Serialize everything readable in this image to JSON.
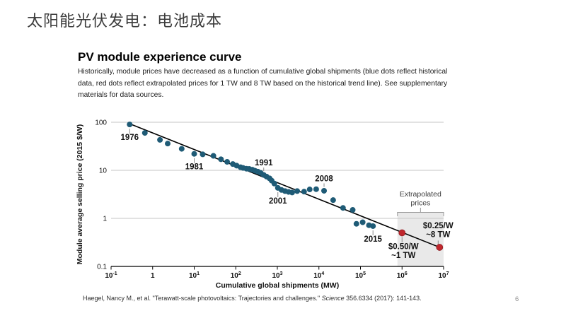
{
  "slide": {
    "title": "太阳能光伏发电：电池成本",
    "page_number": "6"
  },
  "figure": {
    "title": "PV module experience curve",
    "subtitle": "Historically, module prices have decreased as a function of cumulative global shipments (blue dots reflect historical data, red dots reflect extrapolated prices for 1 TW and 8 TW based on the historical trend line). See supplementary materials for data sources.",
    "citation": {
      "prefix": "Haegel,  Nancy M.,  et al. \"Terawatt-scale photovoltaics: Trajectories and challenges.\" ",
      "journal": "Science",
      "suffix": " 356.6334 (2017): 141-143."
    }
  },
  "colors": {
    "historical_dot": "#1f5b76",
    "extrapolated_dot": "#c0272d",
    "extrapolated_dot_stroke": "#8e1d22",
    "trend_line": "#000000",
    "gridline": "#c6c6c6",
    "axis": "#000000",
    "region_fill": "#e9e9e9",
    "bracket": "#999999",
    "leader": "#8a8a8a",
    "annotation_text": "#111111",
    "region_label_text": "#3c3c3c"
  },
  "chart_data": {
    "type": "scatter",
    "title": "PV module experience curve",
    "xlabel": "Cumulative global shipments (MW)",
    "ylabel": "Module average selling price (2015 $/W)",
    "x_scale": "log",
    "y_scale": "log",
    "xlim": [
      0.1,
      10000000
    ],
    "ylim": [
      0.1,
      100
    ],
    "grid": "horizontal-only",
    "x_ticks": [
      {
        "value": 0.1,
        "base": "10",
        "exp": "-1"
      },
      {
        "value": 1,
        "base": "1",
        "exp": ""
      },
      {
        "value": 10,
        "base": "10",
        "exp": "1"
      },
      {
        "value": 100,
        "base": "10",
        "exp": "2"
      },
      {
        "value": 1000,
        "base": "10",
        "exp": "3"
      },
      {
        "value": 10000,
        "base": "10",
        "exp": "4"
      },
      {
        "value": 100000,
        "base": "10",
        "exp": "5"
      },
      {
        "value": 1000000,
        "base": "10",
        "exp": "6"
      },
      {
        "value": 10000000,
        "base": "10",
        "exp": "7"
      }
    ],
    "y_ticks": [
      {
        "value": 100,
        "label": "100"
      },
      {
        "value": 10,
        "label": "10"
      },
      {
        "value": 1,
        "label": "1"
      },
      {
        "value": 0.1,
        "label": "0.1"
      }
    ],
    "series": [
      {
        "name": "historical",
        "color": "#1f5b76",
        "points": [
          [
            0.28,
            90
          ],
          [
            0.65,
            60
          ],
          [
            1.5,
            43
          ],
          [
            2.3,
            36
          ],
          [
            5,
            28
          ],
          [
            10,
            22
          ],
          [
            16,
            21.5
          ],
          [
            29,
            20
          ],
          [
            44,
            17
          ],
          [
            62,
            15
          ],
          [
            85,
            13.5
          ],
          [
            105,
            12.5
          ],
          [
            130,
            11.6
          ],
          [
            150,
            11.2
          ],
          [
            180,
            10.8
          ],
          [
            210,
            10.7
          ],
          [
            250,
            10.3
          ],
          [
            290,
            9.8
          ],
          [
            340,
            9.4
          ],
          [
            400,
            8.8
          ],
          [
            470,
            8.0
          ],
          [
            550,
            7.4
          ],
          [
            650,
            6.8
          ],
          [
            730,
            6.1
          ],
          [
            850,
            5.3
          ],
          [
            1030,
            4.3
          ],
          [
            1260,
            3.9
          ],
          [
            1530,
            3.7
          ],
          [
            1860,
            3.55
          ],
          [
            2270,
            3.45
          ],
          [
            3000,
            3.7
          ],
          [
            4400,
            3.6
          ],
          [
            6000,
            4.0
          ],
          [
            8600,
            4.05
          ],
          [
            13300,
            3.75
          ],
          [
            22000,
            2.4
          ],
          [
            38000,
            1.65
          ],
          [
            65000,
            1.5
          ],
          [
            80000,
            0.77
          ],
          [
            113000,
            0.83
          ],
          [
            160000,
            0.72
          ],
          [
            200000,
            0.69
          ]
        ]
      },
      {
        "name": "extrapolated",
        "color": "#c0272d",
        "points": [
          [
            1000000,
            0.5
          ],
          [
            8000000,
            0.25
          ]
        ]
      }
    ],
    "trend_line": {
      "from": [
        0.28,
        93
      ],
      "to": [
        8000000,
        0.25
      ]
    },
    "annotations": {
      "years": [
        {
          "text": "1976",
          "x": 0.28,
          "y": 90,
          "placement": "below"
        },
        {
          "text": "1981",
          "x": 10,
          "y": 22,
          "placement": "below"
        },
        {
          "text": "1991",
          "x": 470,
          "y": 8.0,
          "placement": "above"
        },
        {
          "text": "2001",
          "x": 1030,
          "y": 4.3,
          "placement": "below"
        },
        {
          "text": "2008",
          "x": 13300,
          "y": 3.75,
          "placement": "above"
        },
        {
          "text": "2015",
          "x": 200000,
          "y": 0.69,
          "placement": "below"
        }
      ],
      "price_labels": [
        {
          "lines": [
            "$0.50/W",
            "~1 TW"
          ],
          "x": 1000000,
          "y": 0.5,
          "placement": "below"
        },
        {
          "lines": [
            "$0.25/W",
            "~8 TW"
          ],
          "x": 8000000,
          "y": 0.25,
          "placement": "above"
        }
      ]
    },
    "extrapolated_region": {
      "x_from": 1000000,
      "x_to": 10000000,
      "label_lines": [
        "Extrapolated",
        "prices"
      ]
    }
  }
}
